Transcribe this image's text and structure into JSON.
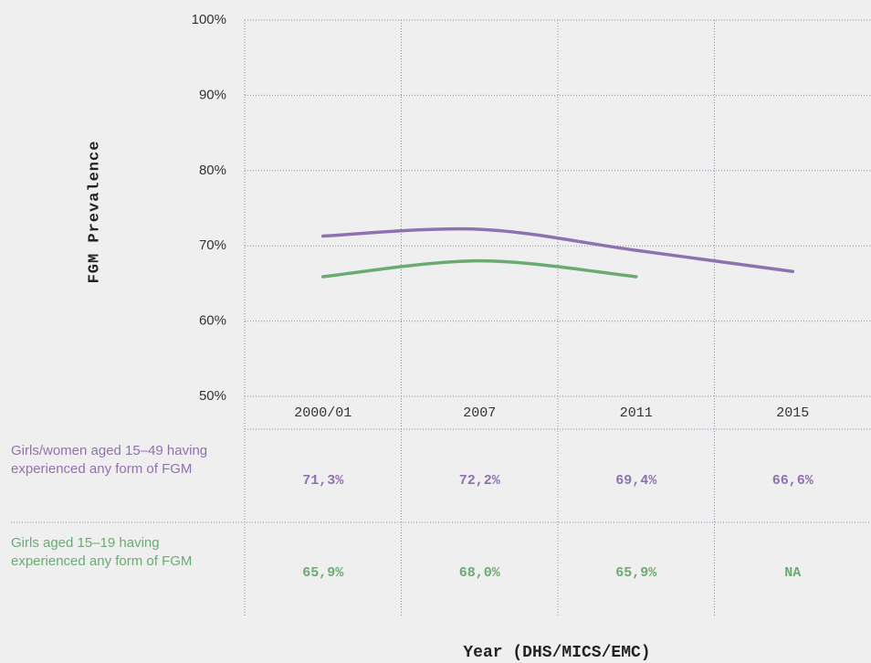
{
  "chart_data": {
    "type": "line",
    "y_label": "FGM Prevalence",
    "x_label": "Year (DHS/MICS/EMC)",
    "categories": [
      "2000/01",
      "2007",
      "2011",
      "2015"
    ],
    "series": [
      {
        "name": "Girls/women aged 15–49 having experienced any form of FGM",
        "color": "#8e72b0",
        "values": [
          71.3,
          72.2,
          69.4,
          66.6
        ],
        "value_labels": [
          "71,3%",
          "72,2%",
          "69,4%",
          "66,6%"
        ]
      },
      {
        "name": "Girls aged 15–19 having experienced any form of FGM",
        "color": "#6aab72",
        "values": [
          65.9,
          68.0,
          65.9,
          null
        ],
        "value_labels": [
          "65,9%",
          "68,0%",
          "65,9%",
          "NA"
        ]
      }
    ],
    "ylim": [
      50,
      100
    ],
    "yticks": [
      {
        "value": 50,
        "label": "50%"
      },
      {
        "value": 60,
        "label": "60%"
      },
      {
        "value": 70,
        "label": "70%"
      },
      {
        "value": 80,
        "label": "80%"
      },
      {
        "value": 90,
        "label": "90%"
      },
      {
        "value": 100,
        "label": "100%"
      }
    ],
    "grid": true
  }
}
